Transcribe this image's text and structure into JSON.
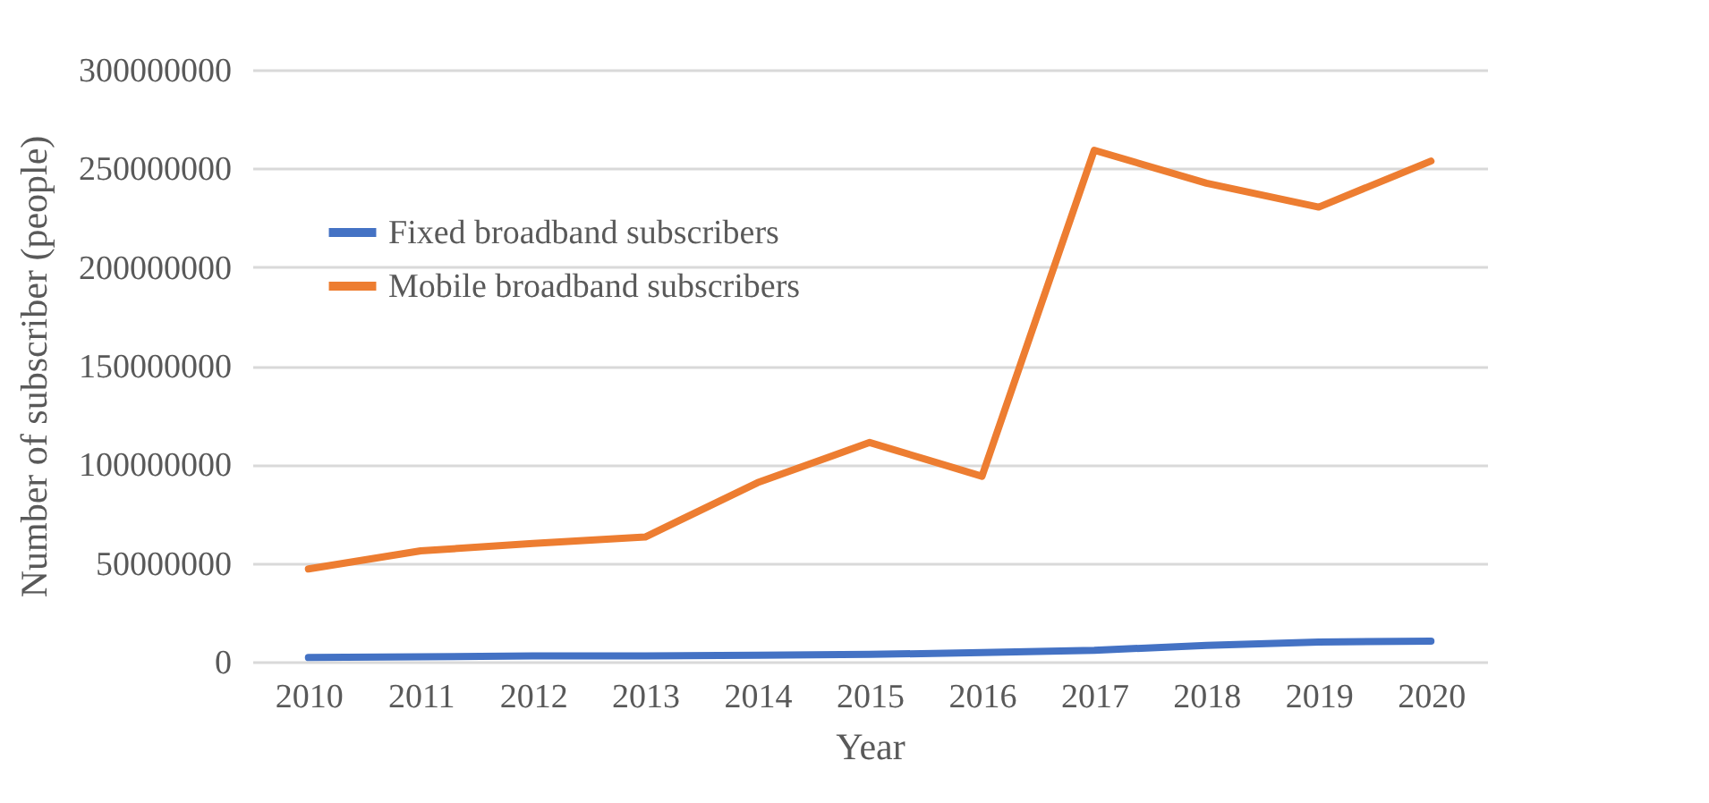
{
  "chart_data": {
    "type": "line",
    "xlabel": "Year",
    "ylabel": "Number of subscriber (people)",
    "categories": [
      "2010",
      "2011",
      "2012",
      "2013",
      "2014",
      "2015",
      "2016",
      "2017",
      "2018",
      "2019",
      "2020"
    ],
    "series": [
      {
        "name": "Fixed broadband subscribers",
        "color": "#4472c4",
        "values": [
          2100000,
          2500000,
          2900000,
          2900000,
          3300000,
          3700000,
          4600000,
          5800000,
          8300000,
          10000000,
          10400000
        ]
      },
      {
        "name": "Mobile broadband subscribers",
        "color": "#ed7d31",
        "values": [
          47000000,
          56200000,
          59900000,
          63200000,
          90700000,
          111100000,
          94000000,
          259200000,
          242500000,
          230400000,
          253700000
        ]
      }
    ],
    "ylim": [
      0,
      300000000
    ],
    "yticks": [
      0,
      50000000,
      100000000,
      150000000,
      200000000,
      250000000,
      300000000
    ],
    "grid": "y",
    "legend": "top left",
    "marker": "none",
    "line_style": "solid"
  }
}
